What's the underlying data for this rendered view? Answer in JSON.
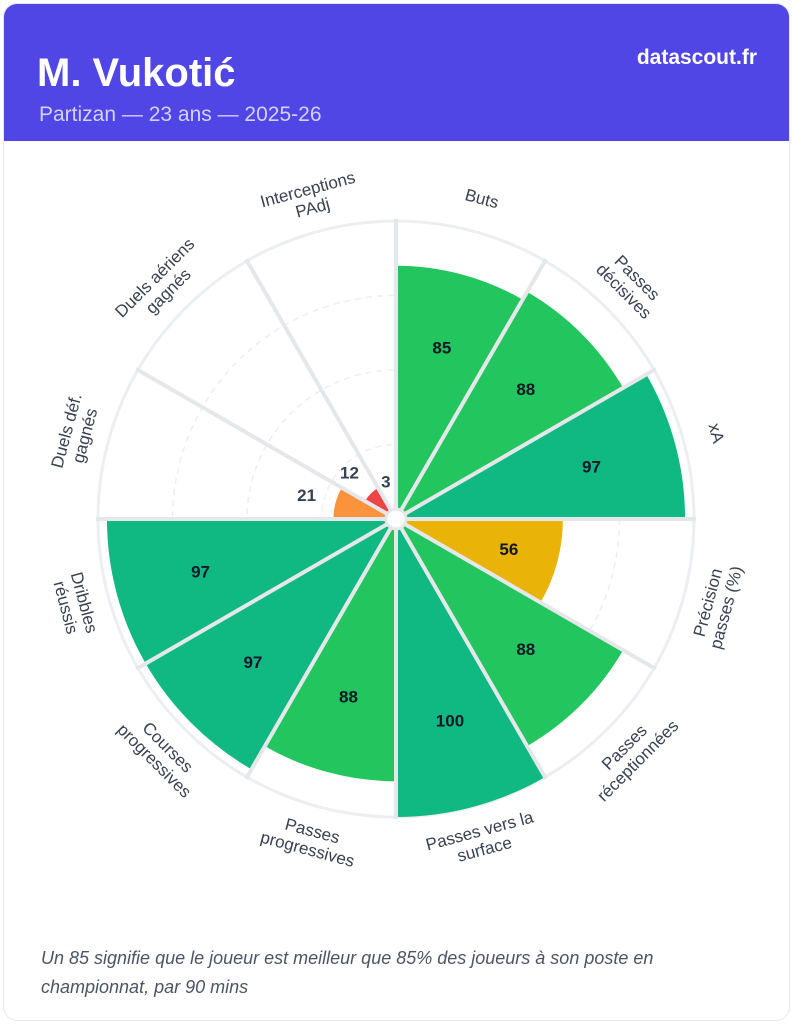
{
  "header": {
    "player": "M. Vukotić",
    "subtitle": "Partizan — 23 ans — 2025-26",
    "brand": "datascout.fr"
  },
  "footnote": "Un 85 signifie que le joueur est meilleur que 85% des joueurs à son poste en championnat, par 90 mins",
  "chart_data": {
    "type": "pizza",
    "range": [
      0,
      100
    ],
    "gridlines": [
      25,
      50,
      75
    ],
    "categories": [
      [
        "Buts"
      ],
      [
        "Passes",
        "décisives"
      ],
      [
        "xA"
      ],
      [
        "Précision",
        "passes (%)"
      ],
      [
        "Passes",
        "réceptionnées"
      ],
      [
        "Passes vers la",
        "surface"
      ],
      [
        "Passes",
        "progressives"
      ],
      [
        "Courses",
        "progressives"
      ],
      [
        "Dribbles",
        "réussis"
      ],
      [
        "Duels déf.",
        "gagnés"
      ],
      [
        "Duels aériens",
        "gagnés"
      ],
      [
        "Interceptions",
        "PAdj"
      ]
    ],
    "values": [
      85,
      88,
      97,
      56,
      88,
      100,
      88,
      97,
      97,
      21,
      12,
      3
    ],
    "colors": {
      "excellent": "#10b981",
      "good": "#22c55e",
      "average": "#eab308",
      "low": "#fb923c",
      "poor": "#ef4444"
    }
  }
}
